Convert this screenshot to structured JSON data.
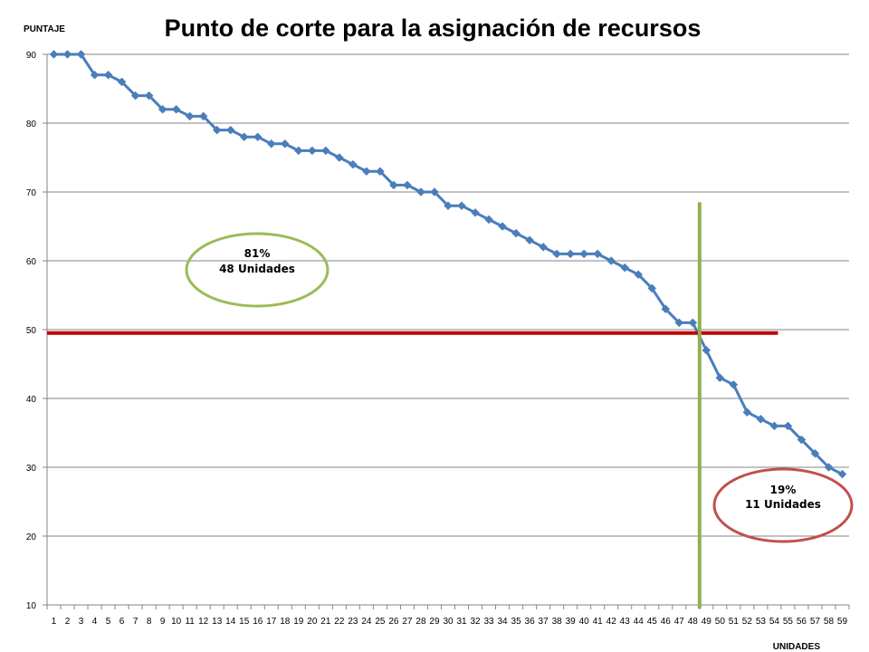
{
  "chart_data": {
    "type": "line",
    "title": "Punto de corte para la asignación de recursos",
    "ylabel": "PUNTAJE",
    "xlabel": "UNIDADES",
    "ylim": [
      10,
      90
    ],
    "yticks": [
      10,
      20,
      30,
      40,
      50,
      60,
      70,
      80,
      90
    ],
    "grid": true,
    "categories": [
      "1",
      "2",
      "3",
      "4",
      "5",
      "6",
      "7",
      "8",
      "9",
      "10",
      "11",
      "12",
      "13",
      "14",
      "15",
      "16",
      "17",
      "18",
      "19",
      "20",
      "21",
      "22",
      "23",
      "24",
      "25",
      "26",
      "27",
      "28",
      "29",
      "30",
      "31",
      "32",
      "33",
      "34",
      "35",
      "36",
      "37",
      "38",
      "39",
      "40",
      "41",
      "42",
      "43",
      "44",
      "45",
      "46",
      "47",
      "48",
      "49",
      "50",
      "51",
      "52",
      "53",
      "54",
      "55",
      "56",
      "57",
      "58",
      "59"
    ],
    "series": [
      {
        "values": [
          90,
          90,
          90,
          87,
          87,
          86,
          84,
          84,
          82,
          82,
          81,
          81,
          79,
          79,
          78,
          78,
          77,
          77,
          76,
          76,
          76,
          75,
          74,
          73,
          73,
          71,
          71,
          70,
          70,
          68,
          68,
          67,
          66,
          65,
          64,
          63,
          62,
          61,
          61,
          61,
          61,
          60,
          59,
          58,
          56,
          53,
          51,
          51,
          47,
          43,
          42,
          38,
          37,
          36,
          36,
          34,
          32,
          30,
          29
        ],
        "color": "#4a7ebb",
        "marker": "diamond"
      }
    ],
    "annotations": {
      "cutoff_score": 49.5,
      "cutoff_unit": 48.5,
      "cutoff_score_line_color": "#c00000",
      "cutoff_unit_line_color": "#92b050",
      "upper_group": {
        "percent": "81%",
        "units": "48 Unidades",
        "color": "#9bbb59"
      },
      "lower_group": {
        "percent": "19%",
        "units": "11 Unidades",
        "color": "#c0504d"
      }
    }
  }
}
